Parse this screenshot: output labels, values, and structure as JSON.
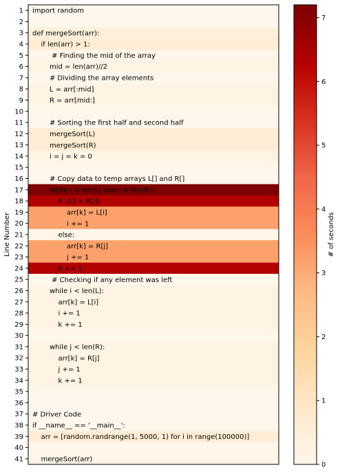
{
  "chart_data": {
    "type": "heatmap",
    "ylabel": "Line Number",
    "colorbar_label": "# of seconds",
    "colorbar_ticks": [
      0,
      1,
      2,
      3,
      4,
      5,
      6,
      7
    ],
    "colorbar_range": [
      0,
      7.2
    ],
    "colormap": "OrRd",
    "lines": [
      {
        "n": 1,
        "code": "import random",
        "indent": 0,
        "seconds": 0
      },
      {
        "n": 2,
        "code": "",
        "indent": 0,
        "seconds": 0
      },
      {
        "n": 3,
        "code": "def mergeSort(arr):",
        "indent": 0,
        "seconds": 0.4
      },
      {
        "n": 4,
        "code": "if len(arr) > 1:",
        "indent": 1,
        "seconds": 0.6
      },
      {
        "n": 5,
        "code": "# Finding the mid of the array",
        "indent": 2.25,
        "seconds": 0.1
      },
      {
        "n": 6,
        "code": "mid = len(arr)//2",
        "indent": 2,
        "seconds": 0.2
      },
      {
        "n": 7,
        "code": "# Dividing the array elements",
        "indent": 2,
        "seconds": 0
      },
      {
        "n": 8,
        "code": "L = arr[:mid]",
        "indent": 2,
        "seconds": 0.2
      },
      {
        "n": 9,
        "code": "R = arr[mid:]",
        "indent": 2,
        "seconds": 0.2
      },
      {
        "n": 10,
        "code": "",
        "indent": 0,
        "seconds": 0
      },
      {
        "n": 11,
        "code": "# Sorting the first half and second half",
        "indent": 2,
        "seconds": 0
      },
      {
        "n": 12,
        "code": "mergeSort(L)",
        "indent": 2,
        "seconds": 0.6
      },
      {
        "n": 13,
        "code": "mergeSort(R)",
        "indent": 2,
        "seconds": 0.6
      },
      {
        "n": 14,
        "code": "i = j = k = 0",
        "indent": 2,
        "seconds": 0.2
      },
      {
        "n": 15,
        "code": "",
        "indent": 0,
        "seconds": 0
      },
      {
        "n": 16,
        "code": "# Copy data to temp arrays L[] and R[]",
        "indent": 2,
        "seconds": 0
      },
      {
        "n": 17,
        "code": "while i < len(L) and j < len(R):",
        "indent": 2,
        "seconds": 7.2
      },
      {
        "n": 18,
        "code": "if L[i] < R[j]:",
        "indent": 3,
        "seconds": 6.3
      },
      {
        "n": 19,
        "code": "arr[k] = L[i]",
        "indent": 4,
        "seconds": 3.2
      },
      {
        "n": 20,
        "code": "i += 1",
        "indent": 4,
        "seconds": 3.2
      },
      {
        "n": 21,
        "code": "else:",
        "indent": 3,
        "seconds": 0.1
      },
      {
        "n": 22,
        "code": "arr[k] = R[j]",
        "indent": 4,
        "seconds": 3.2
      },
      {
        "n": 23,
        "code": "j += 1",
        "indent": 4,
        "seconds": 3.2
      },
      {
        "n": 24,
        "code": "k += 1",
        "indent": 3,
        "seconds": 6.3
      },
      {
        "n": 25,
        "code": "# Checking if any element was left",
        "indent": 2.25,
        "seconds": 0
      },
      {
        "n": 26,
        "code": "while i < len(L):",
        "indent": 2,
        "seconds": 0.2
      },
      {
        "n": 27,
        "code": "arr[k] = L[i]",
        "indent": 3,
        "seconds": 0.2
      },
      {
        "n": 28,
        "code": "i += 1",
        "indent": 3,
        "seconds": 0.2
      },
      {
        "n": 29,
        "code": "k += 1",
        "indent": 3,
        "seconds": 0.2
      },
      {
        "n": 30,
        "code": "",
        "indent": 0,
        "seconds": 0
      },
      {
        "n": 31,
        "code": "while j < len(R):",
        "indent": 2,
        "seconds": 0.2
      },
      {
        "n": 32,
        "code": "arr[k] = R[j]",
        "indent": 3,
        "seconds": 0.2
      },
      {
        "n": 33,
        "code": "j += 1",
        "indent": 3,
        "seconds": 0.2
      },
      {
        "n": 34,
        "code": "k += 1",
        "indent": 3,
        "seconds": 0.2
      },
      {
        "n": 35,
        "code": "",
        "indent": 0,
        "seconds": 0
      },
      {
        "n": 36,
        "code": "",
        "indent": 0,
        "seconds": 0
      },
      {
        "n": 37,
        "code": "# Driver Code",
        "indent": 0,
        "seconds": 0
      },
      {
        "n": 38,
        "code": "if __name__ == '__main__':",
        "indent": 0,
        "seconds": 0
      },
      {
        "n": 39,
        "code": "arr = [random.randrange(1, 5000, 1) for i in range(100000)]",
        "indent": 1,
        "seconds": 0.6
      },
      {
        "n": 40,
        "code": "",
        "indent": 0,
        "seconds": 0
      },
      {
        "n": 41,
        "code": "mergeSort(arr)",
        "indent": 1,
        "seconds": 0.1
      }
    ]
  }
}
